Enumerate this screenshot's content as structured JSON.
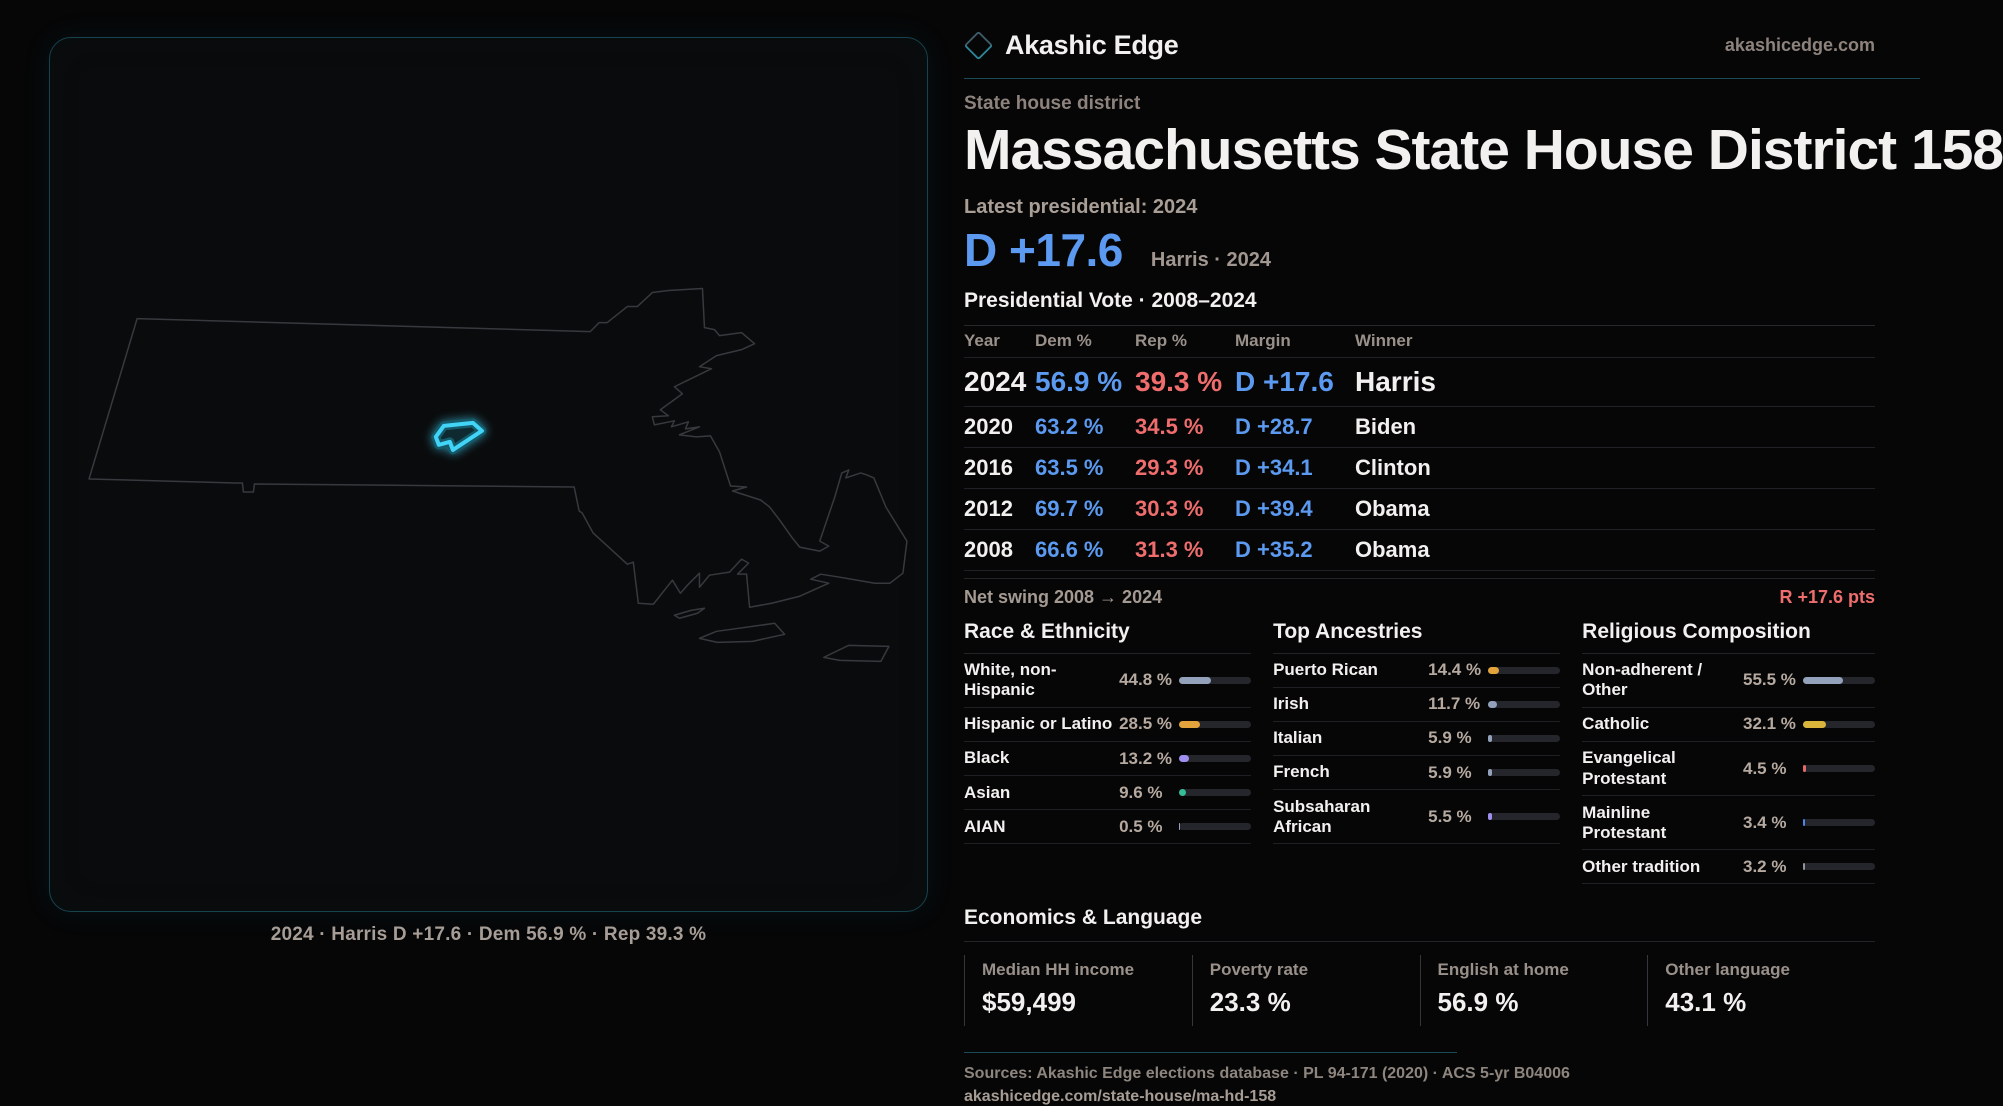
{
  "brand": {
    "name": "Akashic Edge",
    "site": "akashicedge.com"
  },
  "page": {
    "kicker": "State house district",
    "title": "Massachusetts State House District 158"
  },
  "latest": {
    "label": "Latest presidential: 2024",
    "margin": "D +17.6",
    "annotation": "Harris · 2024"
  },
  "vote_table": {
    "title": "Presidential Vote · 2008–2024",
    "columns": [
      "Year",
      "Dem %",
      "Rep %",
      "Margin",
      "Winner"
    ],
    "rows": [
      {
        "year": "2024",
        "dem": "56.9 %",
        "rep": "39.3 %",
        "margin": "D +17.6",
        "winner": "Harris",
        "emphasis": true
      },
      {
        "year": "2020",
        "dem": "63.2 %",
        "rep": "34.5 %",
        "margin": "D +28.7",
        "winner": "Biden",
        "emphasis": false
      },
      {
        "year": "2016",
        "dem": "63.5 %",
        "rep": "29.3 %",
        "margin": "D +34.1",
        "winner": "Clinton",
        "emphasis": false
      },
      {
        "year": "2012",
        "dem": "69.7 %",
        "rep": "30.3 %",
        "margin": "D +39.4",
        "winner": "Obama",
        "emphasis": false
      },
      {
        "year": "2008",
        "dem": "66.6 %",
        "rep": "31.3 %",
        "margin": "D +35.2",
        "winner": "Obama",
        "emphasis": false
      }
    ]
  },
  "net_swing": {
    "label": "Net swing 2008 → 2024",
    "value": "R +17.6 pts"
  },
  "demographics": [
    {
      "title": "Race & Ethnicity",
      "rows": [
        {
          "label": "White, non-Hispanic",
          "value": "44.8 %",
          "pct": 44.8,
          "color": "#93a2ba"
        },
        {
          "label": "Hispanic or Latino",
          "value": "28.5 %",
          "pct": 28.5,
          "color": "#e2a23c"
        },
        {
          "label": "Black",
          "value": "13.2 %",
          "pct": 13.2,
          "color": "#a18ff0"
        },
        {
          "label": "Asian",
          "value": "9.6 %",
          "pct": 9.6,
          "color": "#35bd98"
        },
        {
          "label": "AIAN",
          "value": "0.5 %",
          "pct": 0.5,
          "color": "#93a2ba"
        }
      ]
    },
    {
      "title": "Top Ancestries",
      "rows": [
        {
          "label": "Puerto Rican",
          "value": "14.4 %",
          "pct": 14.4,
          "color": "#e2a23c"
        },
        {
          "label": "Irish",
          "value": "11.7 %",
          "pct": 11.7,
          "color": "#93a2ba"
        },
        {
          "label": "Italian",
          "value": "5.9 %",
          "pct": 5.9,
          "color": "#93a2ba"
        },
        {
          "label": "French",
          "value": "5.9 %",
          "pct": 5.9,
          "color": "#93a2ba"
        },
        {
          "label": "Subsaharan African",
          "value": "5.5 %",
          "pct": 5.5,
          "color": "#a18ff0"
        }
      ]
    },
    {
      "title": "Religious Composition",
      "rows": [
        {
          "label": "Non-adherent / Other",
          "value": "55.5 %",
          "pct": 55.5,
          "color": "#93a2ba"
        },
        {
          "label": "Catholic",
          "value": "32.1 %",
          "pct": 32.1,
          "color": "#d9b53c"
        },
        {
          "label": "Evangelical Protestant",
          "value": "4.5 %",
          "pct": 4.5,
          "color": "#e06a6a"
        },
        {
          "label": "Mainline Protestant",
          "value": "3.4 %",
          "pct": 3.4,
          "color": "#4a86e8"
        },
        {
          "label": "Other tradition",
          "value": "3.2 %",
          "pct": 3.2,
          "color": "#8f949c"
        }
      ]
    }
  ],
  "economics": {
    "title": "Economics & Language",
    "stats": [
      {
        "label": "Median HH income",
        "value": "$59,499"
      },
      {
        "label": "Poverty rate",
        "value": "23.3 %"
      },
      {
        "label": "English at home",
        "value": "56.9 %"
      },
      {
        "label": "Other language",
        "value": "43.1 %"
      }
    ]
  },
  "map": {
    "caption": "2024 · Harris D +17.6 · Dem 56.9 % · Rep 39.3 %"
  },
  "footer": {
    "sources": "Sources: Akashic Edge elections database · PL 94-171 (2020) · ACS 5-yr B04006",
    "url": "akashicedge.com/state-house/ma-hd-158"
  },
  "colors": {
    "accent": "#3fd0f2",
    "dem_blue": "#5b9af0",
    "rep_red": "#ef6d6d",
    "divider_teal": "#1b4b57"
  }
}
